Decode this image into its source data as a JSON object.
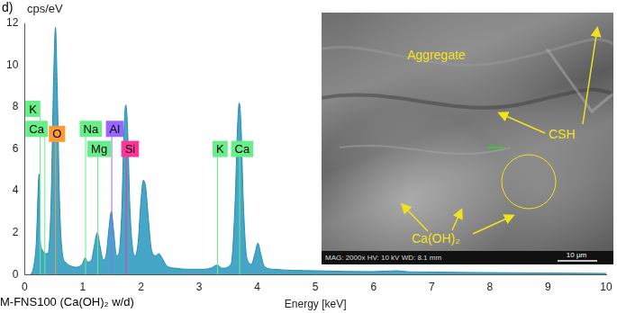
{
  "panel_label": "d)",
  "caption": "M-FNS100 (Ca(OH)₂ w/d)",
  "chart_data": {
    "type": "area",
    "x_label": "Energy [keV]",
    "y_label": "cps/eV",
    "color": "#46a6c8",
    "x": [
      0.1,
      0.15,
      0.2,
      0.25,
      0.27,
      0.3,
      0.35,
      0.4,
      0.45,
      0.5,
      0.53,
      0.56,
      0.6,
      0.65,
      0.7,
      0.8,
      0.9,
      0.95,
      1.0,
      1.04,
      1.08,
      1.15,
      1.2,
      1.25,
      1.3,
      1.35,
      1.4,
      1.45,
      1.49,
      1.53,
      1.58,
      1.62,
      1.67,
      1.71,
      1.74,
      1.77,
      1.81,
      1.86,
      1.9,
      1.95,
      2.0,
      2.04,
      2.08,
      2.13,
      2.18,
      2.25,
      2.31,
      2.36,
      2.45,
      2.6,
      2.8,
      3.0,
      3.2,
      3.31,
      3.4,
      3.55,
      3.62,
      3.66,
      3.69,
      3.72,
      3.76,
      3.82,
      3.9,
      3.96,
      4.01,
      4.06,
      4.12,
      4.3,
      4.6,
      5.0,
      5.5,
      6.0,
      6.4,
      6.6,
      7.0,
      7.5,
      8.0,
      8.5,
      9.0,
      9.5,
      10.0
    ],
    "values": [
      0.0,
      0.3,
      1.5,
      4.8,
      1.6,
      1.2,
      1.0,
      1.0,
      3.0,
      9.5,
      11.8,
      9.0,
      3.5,
      1.0,
      0.6,
      0.4,
      0.35,
      0.4,
      0.55,
      0.8,
      0.6,
      0.7,
      1.4,
      2.0,
      1.3,
      0.7,
      0.9,
      2.2,
      3.0,
      2.1,
      0.9,
      1.0,
      3.0,
      7.0,
      8.1,
      7.0,
      3.2,
      1.2,
      0.9,
      1.5,
      3.5,
      4.5,
      4.2,
      2.6,
      1.2,
      0.9,
      1.0,
      0.8,
      0.4,
      0.3,
      0.25,
      0.25,
      0.3,
      0.45,
      0.3,
      0.5,
      3.5,
      7.0,
      8.2,
      7.2,
      3.5,
      0.8,
      0.5,
      1.0,
      1.5,
      1.0,
      0.4,
      0.25,
      0.2,
      0.18,
      0.15,
      0.14,
      0.18,
      0.13,
      0.12,
      0.1,
      0.09,
      0.08,
      0.07,
      0.06,
      0.05
    ],
    "xlim": [
      0,
      10
    ],
    "xticks": [
      0,
      1,
      2,
      3,
      4,
      5,
      6,
      7,
      8,
      9,
      10
    ],
    "ylim": [
      0,
      12
    ],
    "yticks": [
      0,
      2,
      4,
      6,
      8,
      10,
      12
    ],
    "grid": false,
    "element_markers": [
      {
        "label": "K",
        "x": 0.26,
        "color": "#66ee88"
      },
      {
        "label": "Ca",
        "x": 0.34,
        "color": "#66ee88"
      },
      {
        "label": "O",
        "x": 0.525,
        "color": "#ff9933"
      },
      {
        "label": "Na",
        "x": 1.04,
        "color": "#66ee88"
      },
      {
        "label": "Mg",
        "x": 1.25,
        "color": "#66ee88"
      },
      {
        "label": "Al",
        "x": 1.49,
        "color": "#9966ff"
      },
      {
        "label": "Si",
        "x": 1.74,
        "color": "#ff3399"
      },
      {
        "label": "K",
        "x": 3.31,
        "color": "#66ee88"
      },
      {
        "label": "Ca",
        "x": 3.69,
        "color": "#66ee88"
      }
    ]
  },
  "inset_image": {
    "labels": {
      "aggregate": "Aggregate",
      "csh": "CSH",
      "portlandite": "Ca(OH)₂"
    },
    "info": [
      "MAG: 2000x",
      "HV: 10 kV",
      "WD: 8.1 mm"
    ],
    "scale_bar": "10 µm"
  }
}
